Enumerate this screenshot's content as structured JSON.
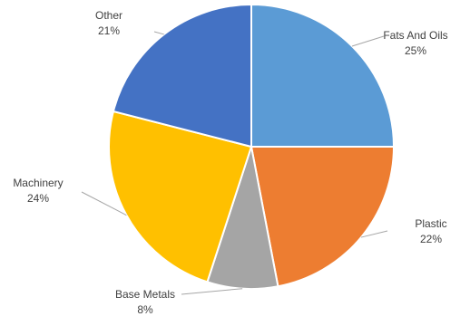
{
  "chart_data": {
    "type": "pie",
    "title": "",
    "categories": [
      "Fats And Oils",
      "Plastic",
      "Base Metals",
      "Machinery",
      "Other"
    ],
    "values": [
      25,
      22,
      8,
      24,
      21
    ],
    "value_labels": [
      "25%",
      "22%",
      "8%",
      "24%",
      "21%"
    ],
    "colors": [
      "#5B9BD5",
      "#ED7D31",
      "#A5A5A5",
      "#FFC000",
      "#4472C4"
    ],
    "legend": "none",
    "label_style": "outside with leader lines"
  }
}
